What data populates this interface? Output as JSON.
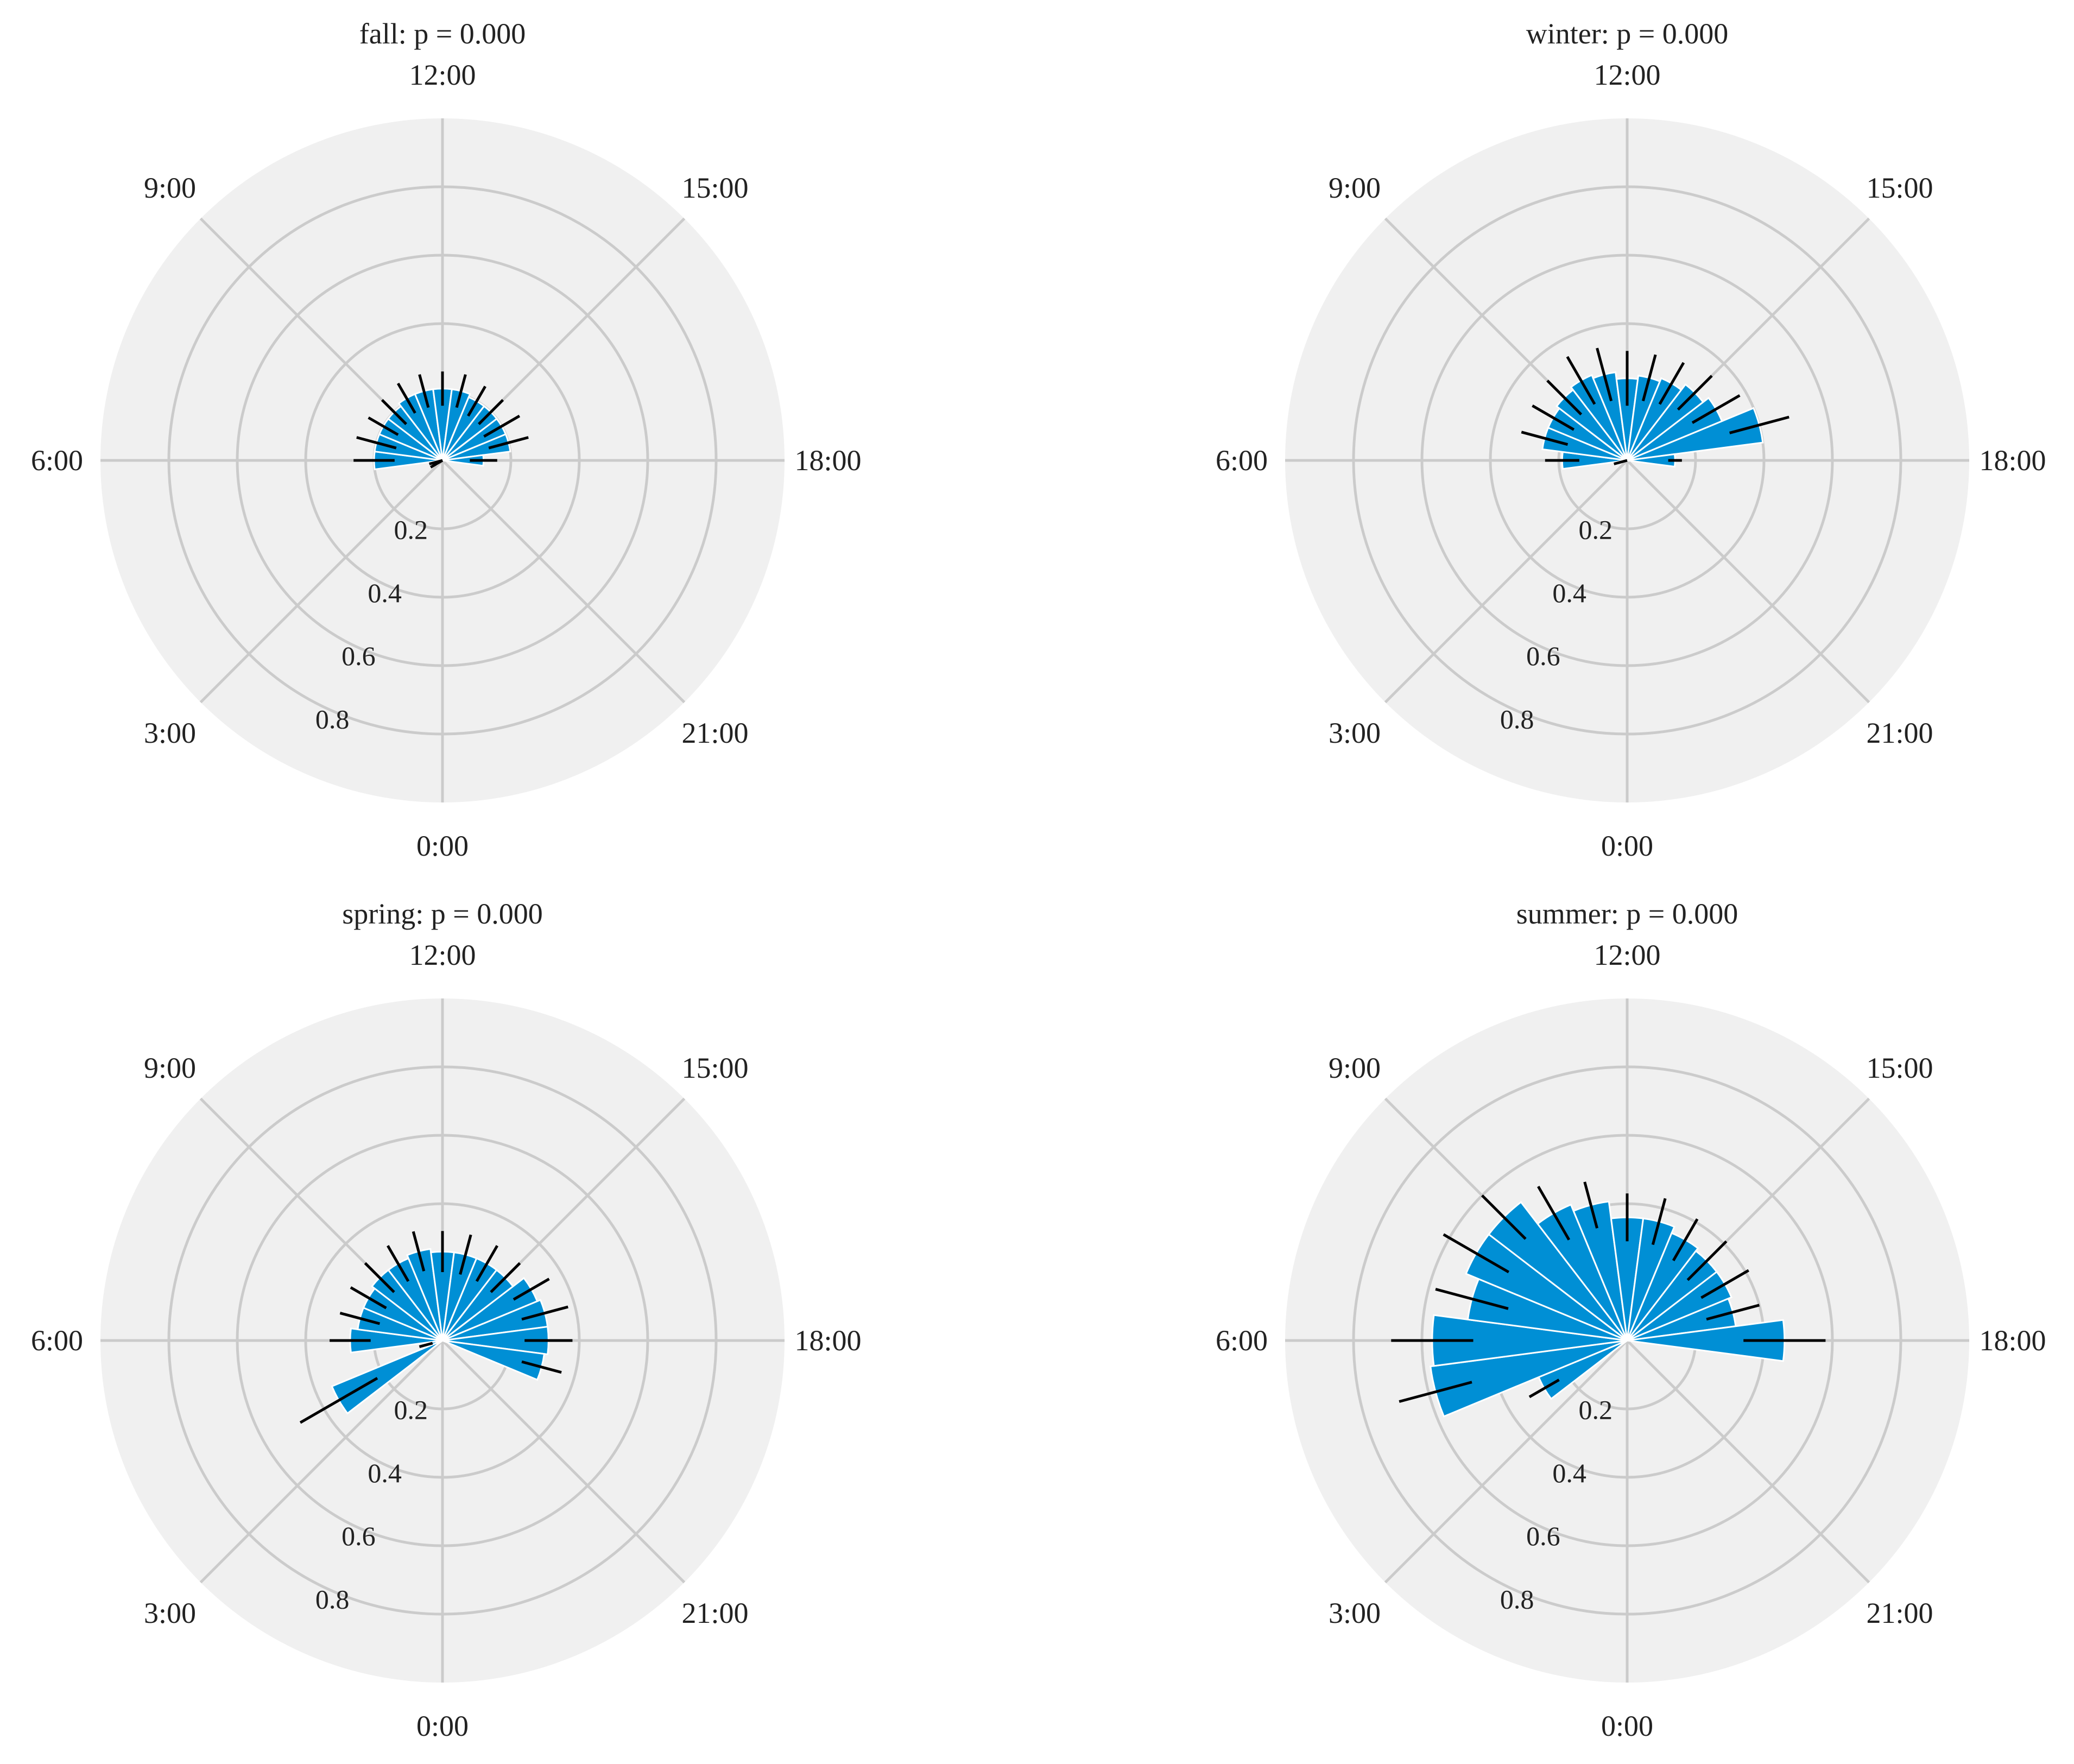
{
  "colors": {
    "bar": "#008fd5",
    "bar_edge": "#ffffff",
    "panel_bg": "#f0f0f0",
    "grid": "#cbcbcb",
    "error": "#000000"
  },
  "chart_data": [
    {
      "type": "polar-bar",
      "title": "fall: p = 0.000",
      "angle_ticks": [
        "0:00",
        "3:00",
        "6:00",
        "9:00",
        "12:00",
        "15:00",
        "18:00",
        "21:00"
      ],
      "radial_ticks": [
        "0.2",
        "0.4",
        "0.6",
        "0.8"
      ],
      "rlim": [
        0,
        1.0
      ],
      "grid": true,
      "hours": [
        0,
        1,
        2,
        3,
        4,
        5,
        6,
        7,
        8,
        9,
        10,
        11,
        12,
        13,
        14,
        15,
        16,
        17,
        18,
        19,
        20,
        21,
        22,
        23
      ],
      "values": [
        0,
        0,
        0,
        0,
        0.02,
        0.02,
        0.2,
        0.2,
        0.2,
        0.2,
        0.21,
        0.21,
        0.21,
        0.21,
        0.2,
        0.2,
        0.2,
        0.2,
        0.12,
        0,
        0,
        0,
        0,
        0
      ],
      "errors": [
        0,
        0,
        0,
        0,
        0.02,
        0.02,
        0.06,
        0.06,
        0.05,
        0.05,
        0.05,
        0.05,
        0.05,
        0.05,
        0.05,
        0.05,
        0.06,
        0.06,
        0.04,
        0,
        0,
        0,
        0,
        0
      ]
    },
    {
      "type": "polar-bar",
      "title": "winter: p = 0.000",
      "angle_ticks": [
        "0:00",
        "3:00",
        "6:00",
        "9:00",
        "12:00",
        "15:00",
        "18:00",
        "21:00"
      ],
      "radial_ticks": [
        "0.2",
        "0.4",
        "0.6",
        "0.8"
      ],
      "rlim": [
        0,
        1.0
      ],
      "grid": true,
      "hours": [
        0,
        1,
        2,
        3,
        4,
        5,
        6,
        7,
        8,
        9,
        10,
        11,
        12,
        13,
        14,
        15,
        16,
        17,
        18,
        19,
        20,
        21,
        22,
        23
      ],
      "values": [
        0,
        0,
        0,
        0,
        0,
        0.02,
        0.19,
        0.25,
        0.25,
        0.26,
        0.27,
        0.26,
        0.24,
        0.25,
        0.26,
        0.28,
        0.3,
        0.4,
        0.14,
        0,
        0,
        0,
        0,
        0
      ],
      "errors": [
        0,
        0,
        0,
        0,
        0,
        0.02,
        0.05,
        0.07,
        0.07,
        0.07,
        0.08,
        0.08,
        0.08,
        0.07,
        0.07,
        0.07,
        0.08,
        0.09,
        0.02,
        0,
        0,
        0,
        0,
        0
      ]
    },
    {
      "type": "polar-bar",
      "title": "spring: p = 0.000",
      "angle_ticks": [
        "0:00",
        "3:00",
        "6:00",
        "9:00",
        "12:00",
        "15:00",
        "18:00",
        "21:00"
      ],
      "radial_ticks": [
        "0.2",
        "0.4",
        "0.6",
        "0.8"
      ],
      "rlim": [
        0,
        1.0
      ],
      "grid": true,
      "hours": [
        0,
        1,
        2,
        3,
        4,
        5,
        6,
        7,
        8,
        9,
        10,
        11,
        12,
        13,
        14,
        15,
        16,
        17,
        18,
        19,
        20,
        21,
        22,
        23
      ],
      "values": [
        0,
        0,
        0,
        0,
        0.35,
        0.05,
        0.27,
        0.25,
        0.25,
        0.26,
        0.26,
        0.27,
        0.26,
        0.26,
        0.26,
        0.26,
        0.3,
        0.31,
        0.31,
        0.3,
        0,
        0,
        0,
        0
      ],
      "errors": [
        0,
        0,
        0,
        0,
        0.13,
        0.02,
        0.06,
        0.06,
        0.06,
        0.06,
        0.06,
        0.06,
        0.06,
        0.06,
        0.06,
        0.06,
        0.06,
        0.07,
        0.07,
        0.06,
        0,
        0,
        0,
        0
      ]
    },
    {
      "type": "polar-bar",
      "title": "summer: p = 0.000",
      "angle_ticks": [
        "0:00",
        "3:00",
        "6:00",
        "9:00",
        "12:00",
        "15:00",
        "18:00",
        "21:00"
      ],
      "radial_ticks": [
        "0.2",
        "0.4",
        "0.6",
        "0.8"
      ],
      "rlim": [
        0,
        1.0
      ],
      "grid": true,
      "hours": [
        0,
        1,
        2,
        3,
        4,
        5,
        6,
        7,
        8,
        9,
        10,
        11,
        12,
        13,
        14,
        15,
        16,
        17,
        18,
        19,
        20,
        21,
        22,
        23
      ],
      "values": [
        0,
        0,
        0,
        0,
        0.28,
        0.58,
        0.57,
        0.47,
        0.51,
        0.51,
        0.43,
        0.41,
        0.36,
        0.36,
        0.34,
        0.33,
        0.33,
        0.32,
        0.46,
        0,
        0,
        0,
        0,
        0
      ],
      "errors": [
        0,
        0,
        0,
        0,
        0.05,
        0.11,
        0.12,
        0.11,
        0.11,
        0.09,
        0.09,
        0.07,
        0.07,
        0.07,
        0.07,
        0.08,
        0.08,
        0.08,
        0.12,
        0,
        0,
        0,
        0,
        0
      ]
    }
  ]
}
